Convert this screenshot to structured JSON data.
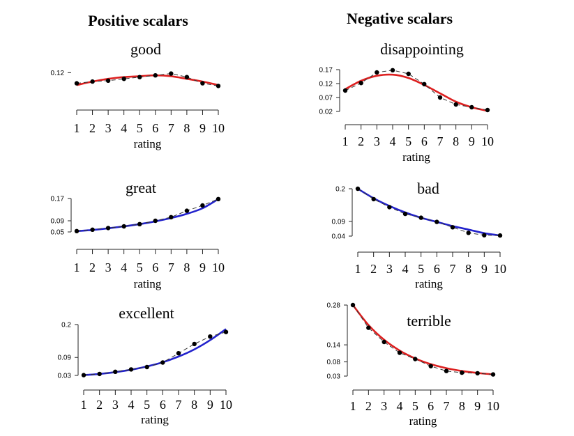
{
  "headers": {
    "left": "Positive scalars",
    "right": "Negative scalars"
  },
  "colors": {
    "red": "#dd1f1f",
    "blue": "#2222cc",
    "points": "#000000"
  },
  "chart_data": [
    {
      "type": "line",
      "title": "good",
      "xlabel": "rating",
      "fit_color": "red",
      "x": [
        1,
        2,
        3,
        4,
        5,
        6,
        7,
        8,
        9,
        10
      ],
      "xticks": [
        "1",
        "2",
        "3",
        "4",
        "5",
        "6",
        "7",
        "8",
        "9",
        "10"
      ],
      "yticks": [
        {
          "v": 0.12,
          "label": "0.12"
        }
      ],
      "ylim": [
        0.088,
        0.125
      ],
      "series": [
        {
          "kind": "observed",
          "values": [
            0.108,
            0.11,
            0.111,
            0.113,
            0.115,
            0.117,
            0.119,
            0.115,
            0.108,
            0.105
          ]
        },
        {
          "kind": "fit",
          "values": [
            0.106,
            0.11,
            0.113,
            0.115,
            0.116,
            0.117,
            0.116,
            0.113,
            0.11,
            0.106
          ]
        }
      ]
    },
    {
      "type": "line",
      "title": "disappointing",
      "xlabel": "rating",
      "fit_color": "red",
      "x": [
        1,
        2,
        3,
        4,
        5,
        6,
        7,
        8,
        9,
        10
      ],
      "xticks": [
        "1",
        "2",
        "3",
        "4",
        "5",
        "6",
        "7",
        "8",
        "9",
        "10"
      ],
      "yticks": [
        {
          "v": 0.17,
          "label": "0.17"
        },
        {
          "v": 0.12,
          "label": "0.12"
        },
        {
          "v": 0.07,
          "label": "0.07"
        },
        {
          "v": 0.02,
          "label": "0.02"
        }
      ],
      "ylim": [
        0.02,
        0.17
      ],
      "series": [
        {
          "kind": "observed",
          "values": [
            0.095,
            0.122,
            0.16,
            0.168,
            0.155,
            0.118,
            0.07,
            0.045,
            0.035,
            0.025
          ]
        },
        {
          "kind": "fit",
          "values": [
            0.1,
            0.13,
            0.148,
            0.152,
            0.14,
            0.115,
            0.085,
            0.055,
            0.035,
            0.022
          ]
        }
      ]
    },
    {
      "type": "line",
      "title": "great",
      "xlabel": "rating",
      "fit_color": "blue",
      "x": [
        1,
        2,
        3,
        4,
        5,
        6,
        7,
        8,
        9,
        10
      ],
      "xticks": [
        "1",
        "2",
        "3",
        "4",
        "5",
        "6",
        "7",
        "8",
        "9",
        "10"
      ],
      "yticks": [
        {
          "v": 0.17,
          "label": "0.17"
        },
        {
          "v": 0.09,
          "label": "0.09"
        },
        {
          "v": 0.05,
          "label": "0.05"
        }
      ],
      "ylim": [
        0.05,
        0.17
      ],
      "series": [
        {
          "kind": "observed",
          "values": [
            0.053,
            0.058,
            0.064,
            0.07,
            0.078,
            0.09,
            0.103,
            0.126,
            0.145,
            0.168
          ]
        },
        {
          "kind": "fit",
          "values": [
            0.053,
            0.057,
            0.063,
            0.07,
            0.078,
            0.088,
            0.1,
            0.115,
            0.135,
            0.168
          ]
        }
      ]
    },
    {
      "type": "line",
      "title": "bad",
      "xlabel": "rating",
      "fit_color": "blue",
      "x": [
        1,
        2,
        3,
        4,
        5,
        6,
        7,
        8,
        9,
        10
      ],
      "xticks": [
        "1",
        "2",
        "3",
        "4",
        "5",
        "6",
        "7",
        "8",
        "9",
        "10"
      ],
      "yticks": [
        {
          "v": 0.2,
          "label": "0.2"
        },
        {
          "v": 0.09,
          "label": "0.09"
        },
        {
          "v": 0.04,
          "label": "0.04"
        }
      ],
      "ylim": [
        0.04,
        0.2
      ],
      "series": [
        {
          "kind": "observed",
          "values": [
            0.2,
            0.165,
            0.138,
            0.115,
            0.102,
            0.088,
            0.07,
            0.051,
            0.043,
            0.042
          ]
        },
        {
          "kind": "fit",
          "values": [
            0.2,
            0.168,
            0.142,
            0.12,
            0.102,
            0.088,
            0.074,
            0.062,
            0.05,
            0.042
          ]
        }
      ]
    },
    {
      "type": "line",
      "title": "excellent",
      "xlabel": "rating",
      "fit_color": "blue",
      "x": [
        1,
        2,
        3,
        4,
        5,
        6,
        7,
        8,
        9,
        10
      ],
      "xticks": [
        "1",
        "2",
        "3",
        "4",
        "5",
        "6",
        "7",
        "8",
        "9",
        "10"
      ],
      "yticks": [
        {
          "v": 0.2,
          "label": "0.2"
        },
        {
          "v": 0.09,
          "label": "0.09"
        },
        {
          "v": 0.03,
          "label": "0.03"
        }
      ],
      "ylim": [
        0.03,
        0.2
      ],
      "series": [
        {
          "kind": "observed",
          "values": [
            0.031,
            0.035,
            0.042,
            0.05,
            0.058,
            0.073,
            0.104,
            0.135,
            0.16,
            0.175
          ]
        },
        {
          "kind": "fit",
          "values": [
            0.031,
            0.035,
            0.041,
            0.049,
            0.06,
            0.074,
            0.093,
            0.117,
            0.148,
            0.185
          ]
        }
      ]
    },
    {
      "type": "line",
      "title": "terrible",
      "xlabel": "rating",
      "fit_color": "red",
      "x": [
        1,
        2,
        3,
        4,
        5,
        6,
        7,
        8,
        9,
        10
      ],
      "xticks": [
        "1",
        "2",
        "3",
        "4",
        "5",
        "6",
        "7",
        "8",
        "9",
        "10"
      ],
      "yticks": [
        {
          "v": 0.28,
          "label": "0.28"
        },
        {
          "v": 0.14,
          "label": "0.14"
        },
        {
          "v": 0.08,
          "label": "0.08"
        },
        {
          "v": 0.03,
          "label": "0.03"
        }
      ],
      "ylim": [
        0.03,
        0.28
      ],
      "series": [
        {
          "kind": "observed",
          "values": [
            0.28,
            0.2,
            0.15,
            0.112,
            0.09,
            0.065,
            0.048,
            0.042,
            0.04,
            0.036
          ]
        },
        {
          "kind": "fit",
          "values": [
            0.28,
            0.21,
            0.158,
            0.12,
            0.092,
            0.072,
            0.058,
            0.048,
            0.041,
            0.036
          ]
        }
      ]
    }
  ]
}
